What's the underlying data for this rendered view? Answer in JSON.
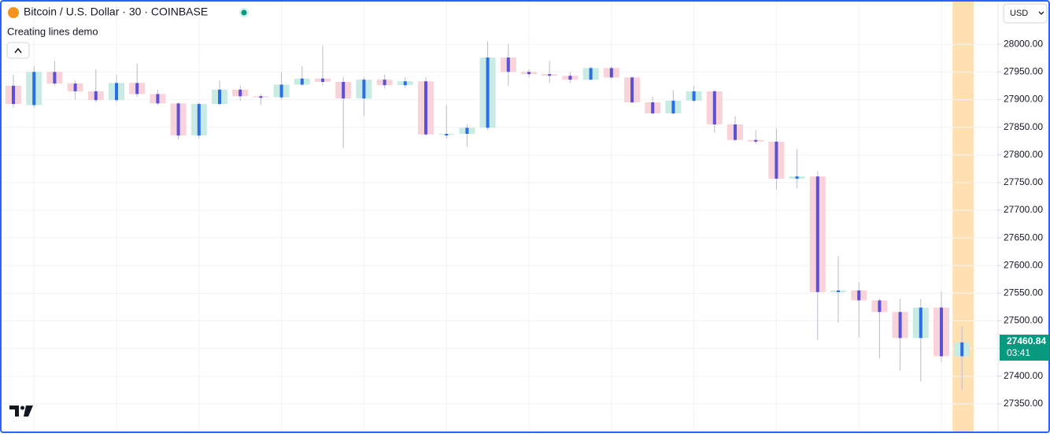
{
  "header": {
    "symbol": "Bitcoin / U.S. Dollar · 30 · COINBASE",
    "indicator": "Creating lines demo",
    "currency": "USD"
  },
  "chart_data": {
    "type": "candlestick",
    "bull_color": "#c8ebe3",
    "bear_color": "#f8d3da",
    "bull_line_color": "#2a6fe6",
    "bear_line_color": "#5c50d4",
    "wick_color": "#b8bcc8",
    "highlight_color": "#ffe0b2",
    "grid": true,
    "ylim": [
      27300,
      28080
    ],
    "yticks": [
      {
        "value": 27350,
        "label": "27350.00"
      },
      {
        "value": 27400,
        "label": "27400.00"
      },
      {
        "value": 27450,
        "label": "27450.00"
      },
      {
        "value": 27500,
        "label": "27500.00"
      },
      {
        "value": 27550,
        "label": "27550.00"
      },
      {
        "value": 27600,
        "label": "27600.00"
      },
      {
        "value": 27650,
        "label": "27650.00"
      },
      {
        "value": 27700,
        "label": "27700.00"
      },
      {
        "value": 27750,
        "label": "27750.00"
      },
      {
        "value": 27800,
        "label": "27800.00"
      },
      {
        "value": 27850,
        "label": "27850.00"
      },
      {
        "value": 27900,
        "label": "27900.00"
      },
      {
        "value": 27950,
        "label": "27950.00"
      },
      {
        "value": 28000,
        "label": "28000.00"
      }
    ],
    "open": [
      27925,
      27890,
      27950,
      27929,
      27915,
      27899,
      27930,
      27910,
      27893,
      27835,
      27892,
      27918,
      27906,
      27904,
      27927,
      27938,
      27932,
      27902,
      27936,
      27926,
      27933,
      27837,
      27838,
      27849,
      27976,
      27950,
      27946,
      27943,
      27936,
      27957,
      27940,
      27895,
      27875,
      27898,
      27915,
      27855,
      27827,
      27824,
      27757,
      27761,
      27552,
      27555,
      27537,
      27516,
      27469,
      27524,
      27436
    ],
    "high": [
      27945,
      27960,
      27970,
      27935,
      27955,
      27945,
      27965,
      27918,
      27895,
      27895,
      27935,
      27925,
      27910,
      27950,
      27960,
      27998,
      27940,
      27940,
      27945,
      27940,
      27940,
      27890,
      27855,
      28005,
      28000,
      27955,
      27970,
      27950,
      27960,
      27960,
      27942,
      27905,
      27917,
      27925,
      27918,
      27870,
      27845,
      27848,
      27810,
      27770,
      27617,
      27570,
      27540,
      27540,
      27540,
      27553,
      27490
    ],
    "low": [
      27885,
      27885,
      27925,
      27900,
      27895,
      27895,
      27905,
      27890,
      27828,
      27830,
      27890,
      27898,
      27890,
      27900,
      27925,
      27925,
      27812,
      27870,
      27920,
      27920,
      27835,
      27830,
      27815,
      27845,
      27925,
      27940,
      27930,
      27930,
      27935,
      27938,
      27893,
      27873,
      27873,
      27895,
      27840,
      27825,
      27820,
      27737,
      27740,
      27465,
      27497,
      27470,
      27432,
      27410,
      27390,
      27425,
      27375
    ],
    "close": [
      27892,
      27950,
      27929,
      27915,
      27899,
      27930,
      27910,
      27893,
      27835,
      27892,
      27918,
      27906,
      27904,
      27927,
      27938,
      27932,
      27902,
      27936,
      27926,
      27933,
      27837,
      27838,
      27849,
      27976,
      27950,
      27946,
      27943,
      27936,
      27957,
      27940,
      27895,
      27875,
      27898,
      27915,
      27855,
      27827,
      27824,
      27757,
      27761,
      27552,
      27555,
      27537,
      27516,
      27469,
      27524,
      27436,
      27461
    ],
    "last_price": 27460.84,
    "countdown": "03:41"
  }
}
